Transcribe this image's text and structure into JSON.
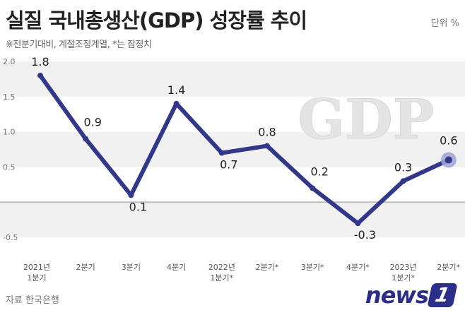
{
  "header": {
    "title": "실질 국내총생산(GDP) 성장률 추이",
    "unit": "단위 %",
    "subtitle": "※전분기대비, 계절조정계열, *는 잠정치"
  },
  "footer": {
    "source": "자료 한국은행",
    "logo_text": "news",
    "logo_badge": "1"
  },
  "watermark": "GDP",
  "colors": {
    "line": "#33378a",
    "band": "#f1f1f1",
    "marker_highlight": "#9ea3d4"
  },
  "chart_data": {
    "type": "line",
    "title": "실질 국내총생산(GDP) 성장률 추이",
    "ylim": [
      -0.8,
      2.0
    ],
    "yticks": [
      2.0,
      1.5,
      1.0,
      0.5,
      -0.5
    ],
    "ytick_labels": [
      "2.0",
      "1.5",
      "1.0",
      "0.5",
      "-0.5"
    ],
    "categories": [
      [
        "2021년",
        "1분기"
      ],
      [
        "2분기"
      ],
      [
        "3분기"
      ],
      [
        "4분기"
      ],
      [
        "2022년",
        "1분기*"
      ],
      [
        "2분기*"
      ],
      [
        "3분기*"
      ],
      [
        "4분기*"
      ],
      [
        "2023년",
        "1분기*"
      ],
      [
        "2분기*"
      ]
    ],
    "values": [
      1.8,
      0.9,
      0.1,
      1.4,
      0.7,
      0.8,
      0.2,
      -0.3,
      0.3,
      0.6
    ],
    "value_labels": [
      "1.8",
      "0.9",
      "0.1",
      "1.4",
      "0.7",
      "0.8",
      "0.2",
      "-0.3",
      "0.3",
      "0.6"
    ],
    "highlight_last": true,
    "grid": "alternating-bands"
  }
}
